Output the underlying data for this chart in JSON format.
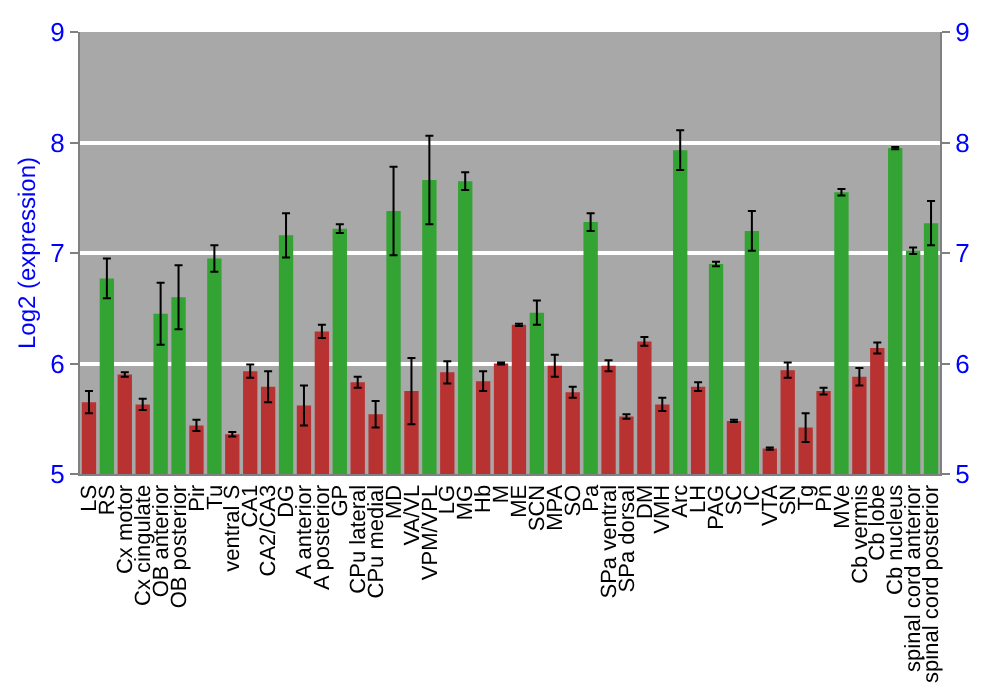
{
  "chart_data": {
    "type": "bar",
    "ylabel": "Log2 (expression)",
    "categories": [
      "LS",
      "RS",
      "Cx motor",
      "Cx cingulate",
      "OB anterior",
      "OB posterior",
      "Pir",
      "Tu",
      "ventral S",
      "CA1",
      "CA2/CA3",
      "DG",
      "A anterior",
      "A posterior",
      "GP",
      "CPu lateral",
      "CPu medial",
      "MD",
      "VA/VL",
      "VPM/VPL",
      "LG",
      "MG",
      "Hb",
      "M",
      "ME",
      "SCN",
      "MPA",
      "SO",
      "Pa",
      "SPa ventral",
      "SPa dorsal",
      "DM",
      "VMH",
      "Arc",
      "LH",
      "PAG",
      "SC",
      "IC",
      "VTA",
      "SN",
      "Tg",
      "Pn",
      "MVe",
      "Cb vermis",
      "Cb lobe",
      "Cb nucleus",
      "spinal cord anterior",
      "spinal cord posterior"
    ],
    "values": [
      5.65,
      6.77,
      5.9,
      5.63,
      6.45,
      6.6,
      5.44,
      6.95,
      5.36,
      5.93,
      5.79,
      7.16,
      5.62,
      6.29,
      7.22,
      5.83,
      5.54,
      7.38,
      5.75,
      7.66,
      5.92,
      7.65,
      5.84,
      6.0,
      6.35,
      6.46,
      5.98,
      5.74,
      7.28,
      5.98,
      5.52,
      6.2,
      5.63,
      7.93,
      5.79,
      6.9,
      5.48,
      7.2,
      5.23,
      5.94,
      5.42,
      5.75,
      7.55,
      5.88,
      6.14,
      7.95,
      7.02,
      7.27
    ],
    "errors": [
      0.1,
      0.18,
      0.02,
      0.05,
      0.28,
      0.29,
      0.05,
      0.12,
      0.02,
      0.06,
      0.14,
      0.2,
      0.18,
      0.06,
      0.04,
      0.05,
      0.12,
      0.4,
      0.3,
      0.4,
      0.1,
      0.08,
      0.09,
      0.01,
      0.01,
      0.11,
      0.1,
      0.05,
      0.08,
      0.05,
      0.02,
      0.04,
      0.06,
      0.18,
      0.04,
      0.02,
      0.01,
      0.18,
      0.01,
      0.07,
      0.13,
      0.03,
      0.03,
      0.08,
      0.05,
      0.01,
      0.03,
      0.2
    ],
    "colors": [
      "#b83232",
      "#33a333",
      "#b83232",
      "#b83232",
      "#33a333",
      "#33a333",
      "#b83232",
      "#33a333",
      "#b83232",
      "#b83232",
      "#b83232",
      "#33a333",
      "#b83232",
      "#b83232",
      "#33a333",
      "#b83232",
      "#b83232",
      "#33a333",
      "#b83232",
      "#33a333",
      "#b83232",
      "#33a333",
      "#b83232",
      "#b83232",
      "#b83232",
      "#33a333",
      "#b83232",
      "#b83232",
      "#33a333",
      "#b83232",
      "#b83232",
      "#b83232",
      "#b83232",
      "#33a333",
      "#b83232",
      "#33a333",
      "#b83232",
      "#33a333",
      "#b83232",
      "#b83232",
      "#b83232",
      "#b83232",
      "#33a333",
      "#b83232",
      "#b83232",
      "#33a333",
      "#33a333",
      "#33a333"
    ],
    "ylim": [
      5,
      9
    ],
    "yticks": [
      5,
      6,
      7,
      8,
      9
    ],
    "y2lim": [
      5,
      9
    ],
    "y2ticks": [
      5,
      6,
      7,
      8,
      9
    ],
    "grid": "y"
  }
}
